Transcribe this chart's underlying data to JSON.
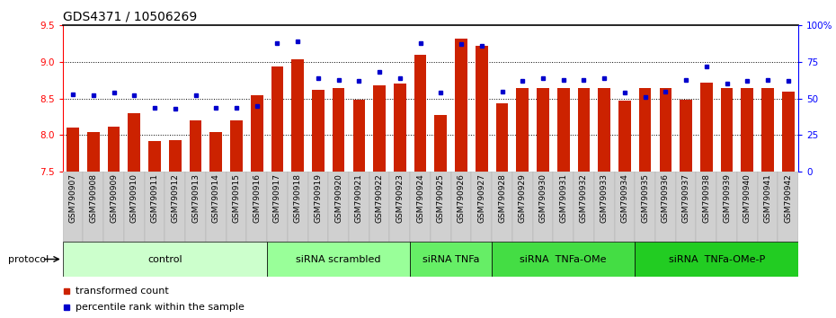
{
  "title": "GDS4371 / 10506269",
  "samples": [
    "GSM790907",
    "GSM790908",
    "GSM790909",
    "GSM790910",
    "GSM790911",
    "GSM790912",
    "GSM790913",
    "GSM790914",
    "GSM790915",
    "GSM790916",
    "GSM790917",
    "GSM790918",
    "GSM790919",
    "GSM790920",
    "GSM790921",
    "GSM790922",
    "GSM790923",
    "GSM790924",
    "GSM790925",
    "GSM790926",
    "GSM790927",
    "GSM790928",
    "GSM790929",
    "GSM790930",
    "GSM790931",
    "GSM790932",
    "GSM790933",
    "GSM790934",
    "GSM790935",
    "GSM790936",
    "GSM790937",
    "GSM790938",
    "GSM790939",
    "GSM790940",
    "GSM790941",
    "GSM790942"
  ],
  "bar_values": [
    8.1,
    8.04,
    8.12,
    8.3,
    7.92,
    7.93,
    8.2,
    8.04,
    8.2,
    8.55,
    8.94,
    9.04,
    8.62,
    8.65,
    8.48,
    8.68,
    8.7,
    9.1,
    8.28,
    9.32,
    9.22,
    8.44,
    8.65,
    8.65,
    8.65,
    8.65,
    8.65,
    8.47,
    8.65,
    8.65,
    8.48,
    8.72,
    8.65,
    8.65,
    8.65,
    8.6
  ],
  "percentile_values": [
    53,
    52,
    54,
    52,
    44,
    43,
    52,
    44,
    44,
    45,
    88,
    89,
    64,
    63,
    62,
    68,
    64,
    88,
    54,
    87,
    86,
    55,
    62,
    64,
    63,
    63,
    64,
    54,
    51,
    55,
    63,
    72,
    60,
    62,
    63,
    62
  ],
  "groups": [
    {
      "label": "control",
      "start": 0,
      "end": 9,
      "color": "#ccffcc"
    },
    {
      "label": "siRNA scrambled",
      "start": 10,
      "end": 16,
      "color": "#99ff99"
    },
    {
      "label": "siRNA TNFa",
      "start": 17,
      "end": 20,
      "color": "#66ee66"
    },
    {
      "label": "siRNA  TNFa-OMe",
      "start": 21,
      "end": 27,
      "color": "#44dd44"
    },
    {
      "label": "siRNA  TNFa-OMe-P",
      "start": 28,
      "end": 35,
      "color": "#22cc22"
    }
  ],
  "ylim_left": [
    7.5,
    9.5
  ],
  "ylim_right": [
    0,
    100
  ],
  "yticks_left": [
    7.5,
    8.0,
    8.5,
    9.0,
    9.5
  ],
  "yticks_right": [
    0,
    25,
    50,
    75,
    100
  ],
  "ytick_labels_right": [
    "0",
    "25",
    "50",
    "75",
    "100%"
  ],
  "bar_color": "#cc2200",
  "percentile_color": "#0000cc",
  "title_fontsize": 10,
  "tick_fontsize": 6.5,
  "group_fontsize": 8,
  "legend_fontsize": 8
}
